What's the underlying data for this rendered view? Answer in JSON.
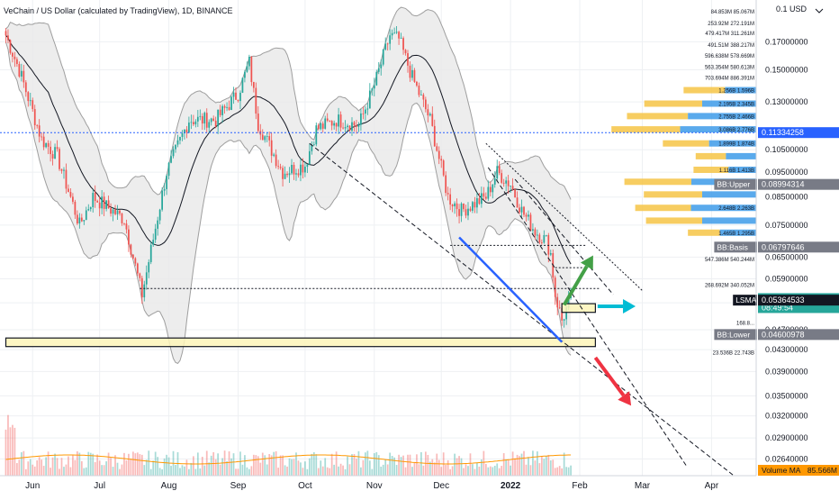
{
  "header": {
    "title": "VeChain / US Dollar (calculated by TradingView), 1D, BINANCE"
  },
  "colors": {
    "up": "#26a69a",
    "down": "#ef5350",
    "band": "#9e9e9e",
    "band_fill": "#e9e9e9",
    "vp_up": "#3d9be9",
    "vp_down": "#f6c445",
    "grid": "#eef0f3",
    "axis_text": "#131722"
  },
  "chart_data": {
    "type": "candlestick",
    "title": "VeChain / US Dollar (calculated by TradingView), 1D, BINANCE",
    "y_scale": "log",
    "ylim": [
      0.0245,
      0.2
    ],
    "currency_label": "0.1 USD",
    "x_ticks": [
      "Jun",
      "Jul",
      "Aug",
      "Sep",
      "Oct",
      "Nov",
      "Dec",
      "2022",
      "Feb",
      "Mar",
      "Apr"
    ],
    "y_ticks": [
      "0.17000000",
      "0.15000000",
      "0.13000000",
      "0.10500000",
      "0.09500000",
      "0.08500000",
      "0.07500000",
      "0.06500000",
      "0.05900000",
      "0.05300000",
      "0.04700000",
      "0.04300000",
      "0.03900000",
      "0.03500000",
      "0.03200000",
      "0.02900000",
      "0.02640000"
    ],
    "price_anchors": [
      [
        "2021-05-20",
        0.175
      ],
      [
        "2021-05-26",
        0.15
      ],
      [
        "2021-06-05",
        0.11
      ],
      [
        "2021-06-12",
        0.102
      ],
      [
        "2021-06-22",
        0.075
      ],
      [
        "2021-06-28",
        0.085
      ],
      [
        "2021-07-05",
        0.081
      ],
      [
        "2021-07-12",
        0.077
      ],
      [
        "2021-07-20",
        0.055
      ],
      [
        "2021-07-31",
        0.095
      ],
      [
        "2021-08-10",
        0.12
      ],
      [
        "2021-08-22",
        0.12
      ],
      [
        "2021-09-01",
        0.135
      ],
      [
        "2021-09-06",
        0.155
      ],
      [
        "2021-09-10",
        0.118
      ],
      [
        "2021-09-21",
        0.095
      ],
      [
        "2021-10-01",
        0.098
      ],
      [
        "2021-10-06",
        0.115
      ],
      [
        "2021-10-15",
        0.12
      ],
      [
        "2021-10-25",
        0.117
      ],
      [
        "2021-11-01",
        0.14
      ],
      [
        "2021-11-08",
        0.175
      ],
      [
        "2021-11-12",
        0.172
      ],
      [
        "2021-11-18",
        0.145
      ],
      [
        "2021-11-26",
        0.12
      ],
      [
        "2021-12-04",
        0.085
      ],
      [
        "2021-12-10",
        0.08
      ],
      [
        "2021-12-21",
        0.085
      ],
      [
        "2021-12-26",
        0.095
      ],
      [
        "2022-01-01",
        0.09
      ],
      [
        "2022-01-06",
        0.08
      ],
      [
        "2022-01-12",
        0.073
      ],
      [
        "2022-01-17",
        0.07
      ],
      [
        "2022-01-19",
        0.066
      ],
      [
        "2022-01-21",
        0.055
      ],
      [
        "2022-01-24",
        0.049
      ],
      [
        "2022-01-28",
        0.054
      ]
    ],
    "price_labels": [
      {
        "name": "last-price",
        "value": 0.05401908,
        "text": "0.05401908",
        "sub": "08:49:54",
        "color": "#26a69a"
      },
      {
        "name": "blue-line-price",
        "value": 0.11334258,
        "text": "0.11334258",
        "color": "#2962ff"
      },
      {
        "name": "bb-upper",
        "value": 0.08994314,
        "text": "0.08994314",
        "label": "BB:Upper",
        "color": "#787b86"
      },
      {
        "name": "bb-basis",
        "value": 0.06797646,
        "text": "0.06797646",
        "label": "BB:Basis",
        "color": "#787b86"
      },
      {
        "name": "lsma",
        "value": 0.05364533,
        "text": "0.05364533",
        "label": "LSMA",
        "color": "#131722"
      },
      {
        "name": "bb-lower",
        "value": 0.04600978,
        "text": "0.04600978",
        "label": "BB:Lower",
        "color": "#787b86"
      }
    ],
    "horizontal_line": {
      "value": 0.11334258,
      "color": "#2962ff"
    },
    "volume_profile": [
      {
        "price": 0.195,
        "label": "84.853M 85.067M",
        "up": 0,
        "down": 0
      },
      {
        "price": 0.185,
        "label": "253.92M 272.191M",
        "up": 0,
        "down": 0
      },
      {
        "price": 0.177,
        "label": "479.417M 311.261M",
        "up": 0,
        "down": 0
      },
      {
        "price": 0.168,
        "label": "491.51M 388.217M",
        "up": 0,
        "down": 0
      },
      {
        "price": 0.16,
        "label": "596.638M 578.669M",
        "up": 0,
        "down": 0
      },
      {
        "price": 0.152,
        "label": "563.354M 580.613M",
        "up": 0,
        "down": 0
      },
      {
        "price": 0.145,
        "label": "703.694M 886.391M",
        "up": 0,
        "down": 0
      },
      {
        "price": 0.137,
        "label": "1.256B 1.596B",
        "up": 0.72,
        "down": 0.96
      },
      {
        "price": 0.129,
        "label": "2.195B 2.345B",
        "up": 1.25,
        "down": 1.34
      },
      {
        "price": 0.122,
        "label": "2.755B 2.466B",
        "up": 1.58,
        "down": 1.41
      },
      {
        "price": 0.115,
        "label": "3.086B 2.776B",
        "up": 1.76,
        "down": 1.59
      },
      {
        "price": 0.108,
        "label": "1.899B 1.874B",
        "up": 1.09,
        "down": 1.07
      },
      {
        "price": 0.102,
        "label": "",
        "up": 0.7,
        "down": 0.7
      },
      {
        "price": 0.096,
        "label": "1.116B 1.413B",
        "up": 0.64,
        "down": 0.81
      },
      {
        "price": 0.091,
        "label": "",
        "up": 1.5,
        "down": 1.55
      },
      {
        "price": 0.086,
        "label": "",
        "up": 1.25,
        "down": 1.35
      },
      {
        "price": 0.081,
        "label": "2.648B 2.263B",
        "up": 1.51,
        "down": 1.29
      },
      {
        "price": 0.0765,
        "label": "",
        "up": 1.25,
        "down": 1.3
      },
      {
        "price": 0.0725,
        "label": "1.465B 1.295B",
        "up": 0.84,
        "down": 0.74
      },
      {
        "price": 0.0685,
        "label": "",
        "up": 0.5,
        "down": 0.42
      },
      {
        "price": 0.0645,
        "label": "547.386M 540.244M",
        "up": 0,
        "down": 0
      },
      {
        "price": 0.061,
        "label": "",
        "up": 0,
        "down": 0
      },
      {
        "price": 0.0575,
        "label": "268.692M 340.052M",
        "up": 0,
        "down": 0
      },
      {
        "price": 0.0545,
        "label": "",
        "up": 0,
        "down": 0
      },
      {
        "price": 0.0515,
        "label": "",
        "up": 0,
        "down": 0
      },
      {
        "price": 0.0485,
        "label": "168.8...",
        "up": 0,
        "down": 0
      },
      {
        "price": 0.0425,
        "label": "23.536B 22.743B",
        "up": 0,
        "down": 0
      }
    ],
    "volume_ma_label": "Volume MA",
    "volume_ma_value": "85.566M",
    "zones": [
      {
        "name": "support-zone",
        "from": "2021-05-20",
        "to": "2022-02-08",
        "low": 0.0436,
        "high": 0.0453
      },
      {
        "name": "consolidation-zone",
        "from": "2022-01-24",
        "to": "2022-02-08",
        "low": 0.0508,
        "high": 0.0528
      }
    ]
  }
}
